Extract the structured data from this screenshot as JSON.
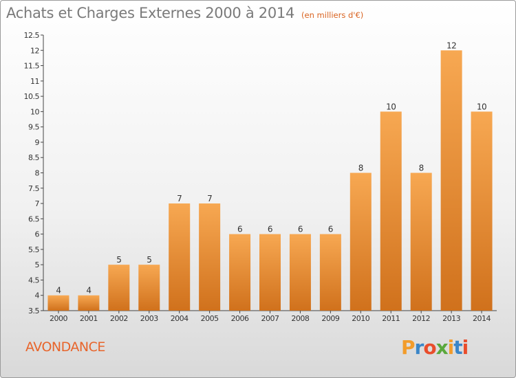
{
  "header": {
    "title": "Achats et Charges Externes 2000 à 2014",
    "unit": "(en milliers d'€)"
  },
  "footer": {
    "commune": "AVONDANCE",
    "logo_text": "Proxiti"
  },
  "colors": {
    "bar_top": "#f7a852",
    "bar_bottom": "#d0711c",
    "title": "#7a7a7a",
    "accent": "#e8642a",
    "logo_letters": [
      "#f29c2b",
      "#3a86c8",
      "#e94d2c",
      "#5aa83c",
      "#f29c2b",
      "#3a86c8",
      "#e94d2c"
    ]
  },
  "chart_data": {
    "type": "bar",
    "title": "Achats et Charges Externes 2000 à 2014",
    "subtitle": "(en milliers d'€)",
    "categories": [
      "2000",
      "2001",
      "2002",
      "2003",
      "2004",
      "2005",
      "2006",
      "2007",
      "2008",
      "2009",
      "2010",
      "2011",
      "2012",
      "2013",
      "2014"
    ],
    "values": [
      4,
      4,
      5,
      5,
      7,
      7,
      6,
      6,
      6,
      6,
      8,
      10,
      8,
      12,
      10
    ],
    "ylim": [
      3.5,
      12.5
    ],
    "yticks": [
      "3.5",
      "4",
      "4.5",
      "5",
      "5.5",
      "6",
      "6.5",
      "7",
      "7.5",
      "8",
      "8.5",
      "9",
      "9.5",
      "10",
      "10.5",
      "11",
      "11.5",
      "12",
      "12.5"
    ],
    "xlabel": "",
    "ylabel": "",
    "grid": false,
    "legend": "none"
  }
}
